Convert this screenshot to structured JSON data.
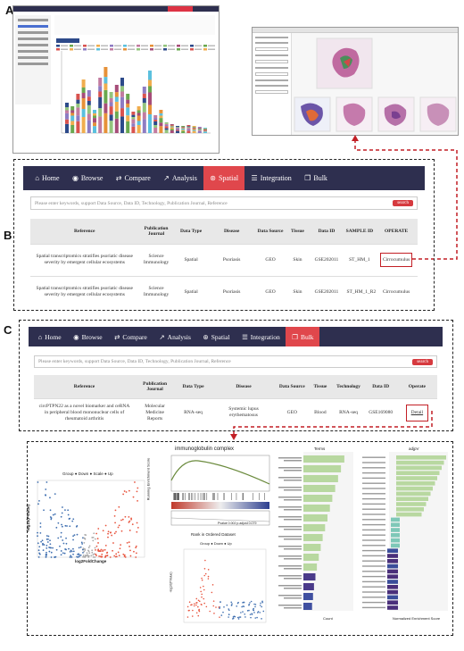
{
  "panels": {
    "a": "A",
    "b": "B",
    "c": "C"
  },
  "panelB": {
    "nav": [
      {
        "icon": "⌂",
        "icon_name": "home-icon",
        "label": "Home",
        "active": false
      },
      {
        "icon": "◉",
        "icon_name": "globe-icon",
        "label": "Browse",
        "active": false
      },
      {
        "icon": "⇄",
        "icon_name": "compare-icon",
        "label": "Compare",
        "active": false
      },
      {
        "icon": "↗",
        "icon_name": "analysis-icon",
        "label": "Analysis",
        "active": false
      },
      {
        "icon": "⊛",
        "icon_name": "spatial-icon",
        "label": "Spatial",
        "active": true
      },
      {
        "icon": "☰",
        "icon_name": "integration-icon",
        "label": "Integration",
        "active": false
      },
      {
        "icon": "❐",
        "icon_name": "bulk-icon",
        "label": "Bulk",
        "active": false
      }
    ],
    "search_placeholder": "Please enter keywords, support Data Source,  Data ID,  Technology,  Publication Journal,  Reference",
    "search_button": "search",
    "headers": [
      "Reference",
      "Publication Journal",
      "Data Type",
      "Disease",
      "Data Source",
      "Tissue",
      "Data ID",
      "SAMPLE ID",
      "OPERATE"
    ],
    "rows": [
      [
        "Spatial transcriptomics stratifies psoriatic disease severity by emergent cellular ecosystems",
        "Science Immunology",
        "Spatial",
        "Psoriasis",
        "GEO",
        "Skin",
        "GSE202011",
        "ST_HM_1",
        "Cirrocumulus"
      ],
      [
        "Spatial transcriptomics stratifies psoriatic disease severity by emergent cellular ecosystems",
        "Science Immunology",
        "Spatial",
        "Psoriasis",
        "GEO",
        "Skin",
        "GSE202011",
        "ST_HM_1_R2",
        "Cirrocumulus"
      ]
    ]
  },
  "panelC": {
    "nav": [
      {
        "icon": "⌂",
        "icon_name": "home-icon",
        "label": "Home",
        "active": false
      },
      {
        "icon": "◉",
        "icon_name": "globe-icon",
        "label": "Browse",
        "active": false
      },
      {
        "icon": "⇄",
        "icon_name": "compare-icon",
        "label": "Compare",
        "active": false
      },
      {
        "icon": "↗",
        "icon_name": "analysis-icon",
        "label": "Analysis",
        "active": false
      },
      {
        "icon": "⊛",
        "icon_name": "spatial-icon",
        "label": "Spatial",
        "active": false
      },
      {
        "icon": "☰",
        "icon_name": "integration-icon",
        "label": "Integration",
        "active": false
      },
      {
        "icon": "❐",
        "icon_name": "bulk-icon",
        "label": "Bulk",
        "active": true
      }
    ],
    "search_placeholder": "Please enter keywords, support Data Source,  Data ID,  Technology,  Publication Journal,  Reference",
    "search_button": "search",
    "headers": [
      "Reference",
      "Publication Journal",
      "Data Type",
      "Disease",
      "Data Source",
      "Tissue",
      "Technology",
      "Data ID",
      "Operate"
    ],
    "rows": [
      [
        "circPTPN22 as a novel biomarker and ceRNA in peripheral blood mononuclear cells of rheumatoid arthritis",
        "Molecular Medicine Reports",
        "RNA-seq",
        "Systemic lupus erythematosus",
        "GEO",
        "Blood",
        "RNA-seq",
        "GSE169080",
        "Detail"
      ]
    ]
  },
  "plots": {
    "volcano": {
      "legend": "Group  ● Down  ● Scale  ● Up",
      "xlabel": "log2FoldChange",
      "ylabel": "-log10(PValue)"
    },
    "gsea": {
      "title": "immunoglobulin complex",
      "xlabel": "Rank in Ordered Dataset",
      "ylabel": "Running Enrichment Score",
      "stat": "Pvalue 0.002 p.adjust 0.079"
    },
    "bar1": {
      "title": "Terms",
      "xlabel": "Count"
    },
    "bar2": {
      "title": "adjpV",
      "xlabel": "Normalized Enrichment Score"
    },
    "manhattan": {
      "legend": "Group  ● Down  ● Up",
      "ylabel": "-log10(PValue)"
    }
  },
  "colors": {
    "nav_bg": "#2e2f4f",
    "nav_active": "#e0474c",
    "highlight": "#c21f25",
    "up": "#e8553f",
    "down": "#3f6fb0"
  }
}
